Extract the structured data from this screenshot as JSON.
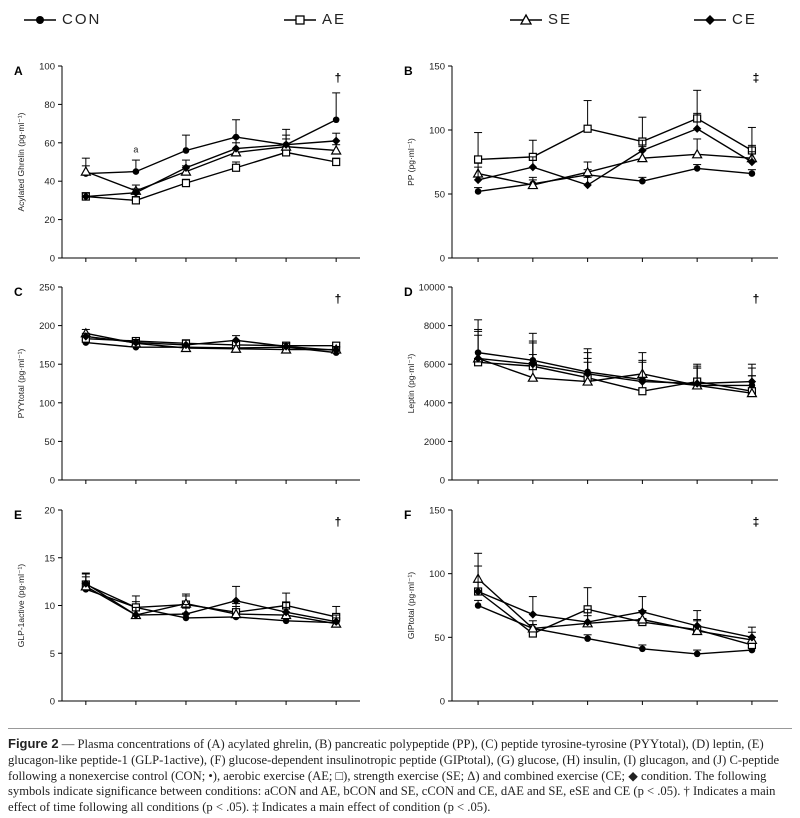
{
  "legend": [
    {
      "label": "CON",
      "marker": "filled-circle"
    },
    {
      "label": "AE",
      "marker": "open-square"
    },
    {
      "label": "SE",
      "marker": "open-triangle"
    },
    {
      "label": "CE",
      "marker": "filled-diamond"
    }
  ],
  "chart_data": [
    {
      "panel": "A",
      "type": "line",
      "ylabel": "Acylated Ghrelin (pg·ml⁻¹)",
      "ylim": [
        0,
        100
      ],
      "yticks": [
        0,
        20,
        40,
        60,
        80,
        100
      ],
      "x": [
        1,
        2,
        3,
        4,
        5,
        6
      ],
      "significance": "†",
      "annotations": [
        {
          "text": "a",
          "x": 2,
          "y": 55
        }
      ],
      "series": [
        {
          "name": "CON",
          "values": [
            44,
            45,
            56,
            63,
            59,
            72
          ],
          "errors": [
            8,
            6,
            8,
            9,
            8,
            14
          ]
        },
        {
          "name": "AE",
          "values": [
            32,
            30,
            39,
            47,
            55,
            50
          ],
          "errors": [
            2,
            2,
            2,
            3,
            3,
            2
          ]
        },
        {
          "name": "SE",
          "values": [
            45,
            35,
            45,
            55,
            58,
            56
          ],
          "errors": [
            3,
            3,
            3,
            5,
            4,
            3
          ]
        },
        {
          "name": "CE",
          "values": [
            32,
            34,
            47,
            57,
            59,
            61
          ],
          "errors": [
            2,
            2,
            4,
            6,
            5,
            4
          ]
        }
      ]
    },
    {
      "panel": "B",
      "type": "line",
      "ylabel": "PP (pg·ml⁻¹)",
      "ylim": [
        0,
        150
      ],
      "yticks": [
        0,
        50,
        100,
        150
      ],
      "x": [
        1,
        2,
        3,
        4,
        5,
        6
      ],
      "significance": "‡",
      "series": [
        {
          "name": "CON",
          "values": [
            52,
            58,
            65,
            60,
            70,
            66
          ],
          "errors": [
            3,
            3,
            4,
            3,
            3,
            3
          ]
        },
        {
          "name": "AE",
          "values": [
            77,
            79,
            101,
            91,
            109,
            84
          ],
          "errors": [
            21,
            13,
            22,
            19,
            22,
            18
          ]
        },
        {
          "name": "SE",
          "values": [
            66,
            57,
            67,
            78,
            81,
            78
          ],
          "errors": [
            8,
            6,
            8,
            9,
            12,
            10
          ]
        },
        {
          "name": "CE",
          "values": [
            61,
            71,
            57,
            84,
            101,
            75
          ],
          "errors": [
            10,
            8,
            6,
            8,
            12,
            8
          ]
        }
      ]
    },
    {
      "panel": "C",
      "type": "line",
      "ylabel": "PYYtotal (pg·ml⁻¹)",
      "ylim": [
        0,
        250
      ],
      "yticks": [
        0,
        50,
        100,
        150,
        200,
        250
      ],
      "x": [
        1,
        2,
        3,
        4,
        5,
        6
      ],
      "significance": "†",
      "series": [
        {
          "name": "CON",
          "values": [
            178,
            172,
            172,
            171,
            172,
            165
          ],
          "errors": [
            3,
            3,
            3,
            3,
            3,
            3
          ]
        },
        {
          "name": "AE",
          "values": [
            183,
            180,
            177,
            175,
            174,
            174
          ],
          "errors": [
            4,
            4,
            4,
            4,
            4,
            4
          ]
        },
        {
          "name": "SE",
          "values": [
            190,
            177,
            171,
            170,
            169,
            169
          ],
          "errors": [
            5,
            4,
            4,
            4,
            4,
            4
          ]
        },
        {
          "name": "CE",
          "values": [
            186,
            178,
            175,
            181,
            173,
            168
          ],
          "errors": [
            4,
            4,
            6,
            6,
            4,
            4
          ]
        }
      ]
    },
    {
      "panel": "D",
      "type": "line",
      "ylabel": "Leptin (pg·ml⁻¹)",
      "ylim": [
        0,
        10000
      ],
      "yticks": [
        0,
        2000,
        4000,
        6000,
        8000,
        10000
      ],
      "x": [
        1,
        2,
        3,
        4,
        5,
        6
      ],
      "significance": "†",
      "series": [
        {
          "name": "CON",
          "values": [
            6600,
            6200,
            5600,
            5200,
            4900,
            4900
          ],
          "errors": [
            1700,
            1400,
            1200,
            1000,
            900,
            900
          ]
        },
        {
          "name": "AE",
          "values": [
            6100,
            5900,
            5300,
            4600,
            5100,
            4600
          ],
          "errors": [
            1400,
            1200,
            1000,
            800,
            900,
            800
          ]
        },
        {
          "name": "SE",
          "values": [
            6300,
            5300,
            5100,
            5500,
            4900,
            4500
          ],
          "errors": [
            1500,
            1200,
            1000,
            1100,
            900,
            900
          ]
        },
        {
          "name": "CE",
          "values": [
            6300,
            6000,
            5500,
            5100,
            5000,
            5100
          ],
          "errors": [
            1400,
            1200,
            1100,
            1000,
            900,
            900
          ]
        }
      ]
    },
    {
      "panel": "E",
      "type": "line",
      "ylabel": "GLP-1active (pg·ml⁻¹)",
      "ylim": [
        0,
        20
      ],
      "yticks": [
        0,
        5,
        10,
        15,
        20
      ],
      "x": [
        1,
        2,
        3,
        4,
        5,
        6
      ],
      "significance": "†",
      "series": [
        {
          "name": "CON",
          "values": [
            11.7,
            9.8,
            8.7,
            8.8,
            8.4,
            8.2
          ],
          "errors": [
            0.6,
            0.6,
            0.5,
            0.5,
            0.5,
            0.4
          ]
        },
        {
          "name": "AE",
          "values": [
            12.2,
            9.8,
            10.1,
            9.3,
            10.0,
            8.8
          ],
          "errors": [
            1.2,
            1.2,
            0.9,
            0.9,
            1.3,
            1.1
          ]
        },
        {
          "name": "SE",
          "values": [
            12.0,
            9.0,
            10.2,
            9.1,
            9.0,
            8.1
          ],
          "errors": [
            1.0,
            0.8,
            1.0,
            0.8,
            0.8,
            0.6
          ]
        },
        {
          "name": "CE",
          "values": [
            12.3,
            9.0,
            9.1,
            10.5,
            9.3,
            8.3
          ],
          "errors": [
            1.0,
            0.8,
            1.0,
            1.5,
            1.0,
            0.7
          ]
        }
      ]
    },
    {
      "panel": "F",
      "type": "line",
      "ylabel": "GIPtotal (pg·ml⁻¹)",
      "ylim": [
        0,
        150
      ],
      "yticks": [
        0,
        50,
        100,
        150
      ],
      "x": [
        1,
        2,
        3,
        4,
        5,
        6
      ],
      "significance": "‡",
      "series": [
        {
          "name": "CON",
          "values": [
            75,
            57,
            49,
            41,
            37,
            40
          ],
          "errors": [
            4,
            3,
            3,
            3,
            3,
            2
          ]
        },
        {
          "name": "AE",
          "values": [
            86,
            53,
            72,
            62,
            56,
            44
          ],
          "errors": [
            8,
            7,
            17,
            9,
            8,
            6
          ]
        },
        {
          "name": "SE",
          "values": [
            96,
            57,
            61,
            64,
            55,
            48
          ],
          "errors": [
            10,
            6,
            6,
            7,
            8,
            6
          ]
        },
        {
          "name": "CE",
          "values": [
            86,
            68,
            62,
            70,
            59,
            50
          ],
          "errors": [
            30,
            14,
            10,
            12,
            12,
            8
          ]
        }
      ]
    }
  ],
  "caption": {
    "label": "Figure 2",
    "text": "— Plasma concentrations of (A) acylated ghrelin, (B) pancreatic polypeptide (PP), (C) peptide tyrosine-tyrosine (PYYtotal), (D) leptin, (E) glucagon-like peptide-1 (GLP-1active), (F) glucose-dependent insulinotropic peptide (GIPtotal), (G) glucose, (H) insulin, (I) glucagon, and (J) C-peptide following a nonexercise control (CON; •), aerobic exercise (AE; □), strength exercise (SE; Δ) and combined exercise (CE; ◆ condition. The following symbols indicate significance between conditions: aCON and AE, bCON and SE, cCON and CE, dAE and SE, eSE and CE (p < .05). † Indicates a main effect of time following all conditions (p < .05). ‡ Indicates a main effect of condition (p < .05)."
  }
}
